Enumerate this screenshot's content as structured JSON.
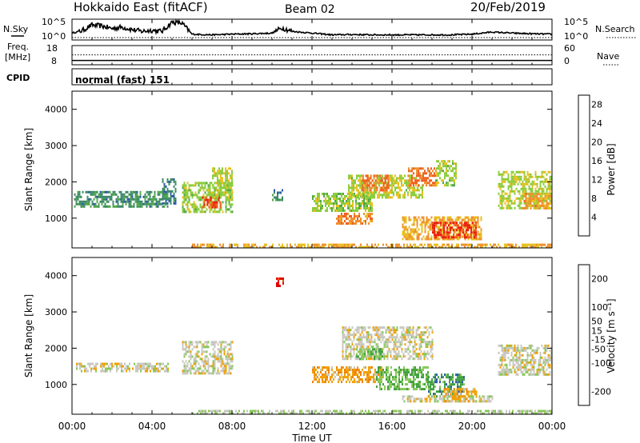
{
  "header": {
    "title": "Hokkaido East (fitACF)",
    "beam": "Beam 02",
    "date": "20/Feb/2019"
  },
  "labels": {
    "nsky": "N.Sky",
    "nsky_ticks": [
      "10^5",
      "10^0"
    ],
    "freq_l1": "Freq.",
    "freq_l2": "[MHz]",
    "freq_ticks": [
      "18",
      "8"
    ],
    "right_ticks_top": [
      "10^5",
      "10^0"
    ],
    "right_ticks_mid": [
      "60",
      "0"
    ],
    "nsearch": "N.Search",
    "nave": "Nave",
    "cpid": "CPID",
    "cpid_value": "normal (fast) 151",
    "xlabel": "Time UT",
    "ylabel": "Slant Range [km]",
    "power_cb_label": "Power [dB]",
    "velocity_cb_label": "Velocity [m s⁻¹]"
  },
  "colors": {
    "power_scale": [
      "#1010e8",
      "#2e5aa8",
      "#3e8a6a",
      "#52a848",
      "#8ccc3c",
      "#e8c020",
      "#f09030",
      "#f06020",
      "#e82010"
    ],
    "velocity_scale": [
      "#e00000",
      "#f05000",
      "#f08000",
      "#f0a000",
      "#c8c8c0",
      "#88c858",
      "#40a040",
      "#2e5aa8",
      "#1018c0"
    ]
  },
  "chart_data": [
    {
      "type": "line",
      "name": "N.Sky / N.Search panel",
      "xlim": [
        0,
        24
      ],
      "ylim_log10": [
        0,
        5
      ],
      "ylabel": "N.Sky",
      "series": [
        {
          "name": "N.Sky",
          "x": [
            0,
            0.5,
            1,
            1.5,
            2,
            2.5,
            3,
            3.5,
            4,
            4.5,
            5,
            5.5,
            6,
            7,
            8,
            9,
            10,
            10.5,
            11,
            12,
            13,
            14,
            15,
            16,
            17,
            18,
            19,
            20,
            21,
            22,
            23,
            24
          ],
          "log_values": [
            1.5,
            2.2,
            3.8,
            3.5,
            2.8,
            3.2,
            2.5,
            2.0,
            2.3,
            2.0,
            4.6,
            4.3,
            1.2,
            1.0,
            1.2,
            1.3,
            1.5,
            3.0,
            2.0,
            1.5,
            1.0,
            1.1,
            1.0,
            1.0,
            1.0,
            1.0,
            1.0,
            1.2,
            1.8,
            1.5,
            1.3,
            1.2
          ]
        }
      ]
    },
    {
      "type": "line",
      "name": "Freq / Nave panel",
      "xlim": [
        0,
        24
      ],
      "ylabel": "Freq. [MHz]",
      "yticks": [
        8,
        18
      ],
      "series": [
        {
          "name": "Freq.",
          "x": [
            0,
            24
          ],
          "values": [
            10,
            10
          ]
        },
        {
          "name": "Nave",
          "x": [
            0,
            24
          ],
          "values": [
            31,
            31
          ]
        }
      ]
    },
    {
      "type": "heatmap",
      "title": "Power",
      "xlabel": "Time UT",
      "ylabel": "Slant Range [km]",
      "xlim": [
        0,
        24
      ],
      "ylim": [
        180,
        4500
      ],
      "xticks": [
        "00:00",
        "04:00",
        "08:00",
        "12:00",
        "16:00",
        "20:00",
        "00:00"
      ],
      "yticks": [
        1000,
        2000,
        3000,
        4000
      ],
      "colorbar": {
        "label": "Power [dB]",
        "ticks": [
          4,
          8,
          12,
          16,
          20,
          24,
          28
        ],
        "range": [
          0,
          30
        ]
      },
      "regions": [
        {
          "t": [
            0.1,
            4.8
          ],
          "r": [
            1300,
            1750
          ],
          "v": 9
        },
        {
          "t": [
            4.5,
            5.2
          ],
          "r": [
            1400,
            2100
          ],
          "v": 8
        },
        {
          "t": [
            5.5,
            8.0
          ],
          "r": [
            1200,
            2000
          ],
          "v": 15
        },
        {
          "t": [
            6.5,
            7.4
          ],
          "r": [
            1300,
            1600
          ],
          "v": 26
        },
        {
          "t": [
            7.0,
            8.0
          ],
          "r": [
            1600,
            2400
          ],
          "v": 16
        },
        {
          "t": [
            10.0,
            10.5
          ],
          "r": [
            1500,
            1800
          ],
          "v": 8
        },
        {
          "t": [
            12.0,
            15.0
          ],
          "r": [
            1200,
            1700
          ],
          "v": 15
        },
        {
          "t": [
            13.2,
            15.0
          ],
          "r": [
            850,
            1150
          ],
          "v": 22
        },
        {
          "t": [
            13.8,
            17.5
          ],
          "r": [
            1600,
            2200
          ],
          "v": 16
        },
        {
          "t": [
            14.5,
            15.8
          ],
          "r": [
            1800,
            2200
          ],
          "v": 24
        },
        {
          "t": [
            16.8,
            18.2
          ],
          "r": [
            1900,
            2400
          ],
          "v": 24
        },
        {
          "t": [
            16.5,
            20.5
          ],
          "r": [
            400,
            1050
          ],
          "v": 20
        },
        {
          "t": [
            18.0,
            20.2
          ],
          "r": [
            500,
            900
          ],
          "v": 27
        },
        {
          "t": [
            18.2,
            19.2
          ],
          "r": [
            1900,
            2600
          ],
          "v": 15
        },
        {
          "t": [
            21.3,
            24.0
          ],
          "r": [
            1300,
            2300
          ],
          "v": 16
        },
        {
          "t": [
            22.5,
            24.0
          ],
          "r": [
            1300,
            1700
          ],
          "v": 21
        },
        {
          "t": [
            6.0,
            24.0
          ],
          "r": [
            180,
            300
          ],
          "v": 20
        }
      ]
    },
    {
      "type": "heatmap",
      "title": "Velocity",
      "xlabel": "Time UT",
      "ylabel": "Slant Range [km]",
      "xlim": [
        0,
        24
      ],
      "ylim": [
        180,
        4500
      ],
      "xticks": [
        "00:00",
        "04:00",
        "08:00",
        "12:00",
        "16:00",
        "20:00",
        "00:00"
      ],
      "yticks": [
        1000,
        2000,
        3000,
        4000
      ],
      "colorbar": {
        "label": "Velocity [m s⁻¹]",
        "ticks": [
          200,
          100,
          50,
          15,
          -15,
          -50,
          -100,
          -200
        ],
        "range": [
          -250,
          250
        ]
      },
      "regions": [
        {
          "t": [
            0.2,
            4.8
          ],
          "r": [
            1350,
            1600
          ],
          "v": 0
        },
        {
          "t": [
            5.5,
            8.0
          ],
          "r": [
            1300,
            2200
          ],
          "v": 0
        },
        {
          "t": [
            10.2,
            10.6
          ],
          "r": [
            3750,
            3950
          ],
          "v": 220
        },
        {
          "t": [
            12.0,
            15.5
          ],
          "r": [
            1100,
            1500
          ],
          "v": 60
        },
        {
          "t": [
            13.5,
            18.0
          ],
          "r": [
            1700,
            2600
          ],
          "v": 0
        },
        {
          "t": [
            14.2,
            15.5
          ],
          "r": [
            1700,
            2000
          ],
          "v": -70
        },
        {
          "t": [
            15.2,
            17.8
          ],
          "r": [
            900,
            1500
          ],
          "v": -80
        },
        {
          "t": [
            17.8,
            19.6
          ],
          "r": [
            700,
            1300
          ],
          "v": -120
        },
        {
          "t": [
            18.5,
            20.2
          ],
          "r": [
            550,
            900
          ],
          "v": 60
        },
        {
          "t": [
            16.5,
            21.0
          ],
          "r": [
            550,
            700
          ],
          "v": 0
        },
        {
          "t": [
            21.3,
            24.0
          ],
          "r": [
            1300,
            2100
          ],
          "v": 0
        },
        {
          "t": [
            6.0,
            24.0
          ],
          "r": [
            180,
            300
          ],
          "v": -30
        }
      ]
    }
  ]
}
